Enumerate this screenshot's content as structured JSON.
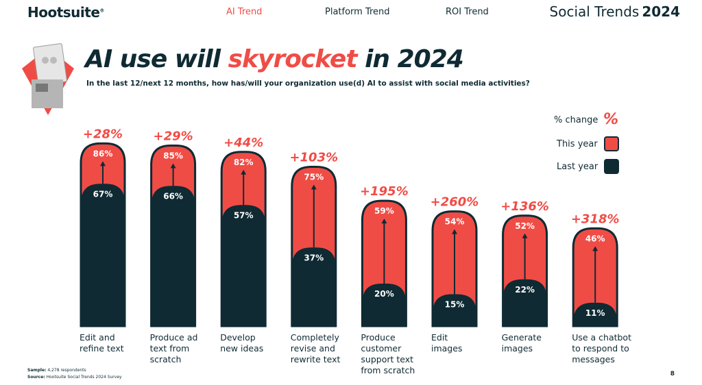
{
  "header": {
    "brand": "Hootsuite",
    "brand_mark": "®",
    "nav": [
      "AI Trend",
      "Platform Trend",
      "ROI Trend"
    ],
    "active_nav": "AI Trend",
    "report_title": "Social Trends",
    "report_year": "2024"
  },
  "slide": {
    "title_part1": "AI use will ",
    "title_highlight": "skyrocket",
    "title_part2": " in 2024",
    "subtitle": "In the last 12/next 12 months, how has/will your organization use(d) AI to assist with social media activities?"
  },
  "legend": {
    "change_label": "% change",
    "change_symbol": "%",
    "this_year_label": "This year",
    "last_year_label": "Last year"
  },
  "colors": {
    "this_year": "#f04c46",
    "last_year": "#0f2a33",
    "accent": "#f04c46",
    "text": "#0f2a33"
  },
  "chart_data": {
    "type": "bar",
    "categories": [
      [
        "Edit and",
        "refine text"
      ],
      [
        "Produce ad",
        "text from",
        "scratch"
      ],
      [
        "Develop",
        "new ideas"
      ],
      [
        "Completely",
        "revise and",
        "rewrite text"
      ],
      [
        "Produce",
        "customer",
        "support text",
        "from scratch"
      ],
      [
        "Edit",
        "images"
      ],
      [
        "Generate",
        "images"
      ],
      [
        "Use a chatbot",
        "to respond to",
        "messages"
      ]
    ],
    "series": [
      {
        "name": "Last year",
        "values": [
          67,
          66,
          57,
          37,
          20,
          15,
          22,
          11
        ],
        "labels": [
          "67%",
          "66%",
          "57%",
          "37%",
          "20%",
          "15%",
          "22%",
          "11%"
        ]
      },
      {
        "name": "This year",
        "values": [
          86,
          85,
          82,
          75,
          59,
          54,
          52,
          46
        ],
        "labels": [
          "86%",
          "85%",
          "82%",
          "75%",
          "59%",
          "54%",
          "52%",
          "46%"
        ]
      }
    ],
    "change_labels": [
      "+28%",
      "+29%",
      "+44%",
      "+103%",
      "+195%",
      "+260%",
      "+136%",
      "+318%"
    ],
    "ylim": [
      0,
      100
    ]
  },
  "footer": {
    "sample_label": "Sample:",
    "sample_value": " 4,278 respondents",
    "source_label": "Source:",
    "source_value": " Hootsuite Social Trends 2024 Survey",
    "page_number": "8"
  }
}
